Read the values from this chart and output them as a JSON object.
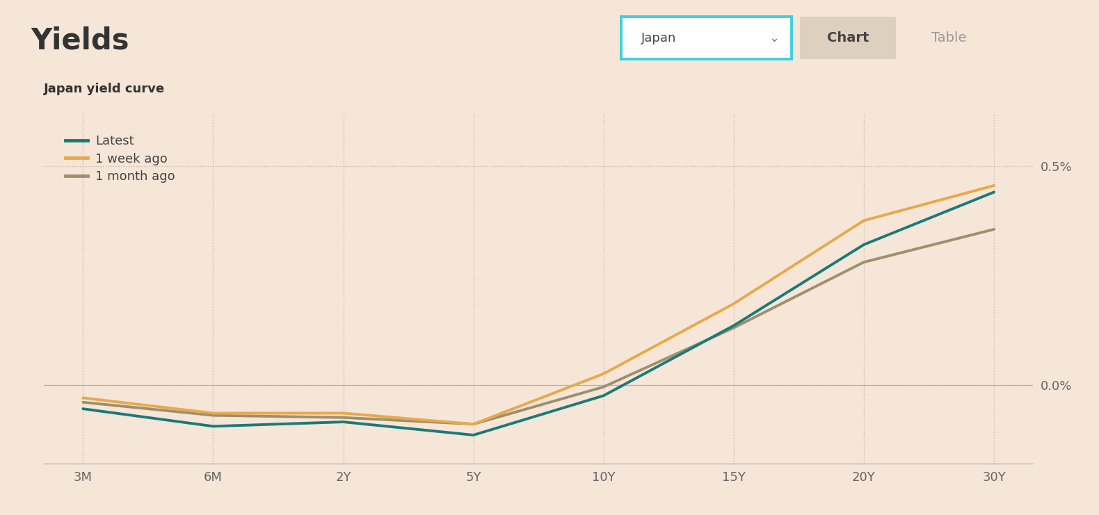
{
  "title": "Yields",
  "subtitle": "Japan yield curve",
  "background_color": "#f5e6d8",
  "plot_bg_color": "#f5e6d8",
  "x_labels": [
    "3M",
    "6M",
    "2Y",
    "5Y",
    "10Y",
    "15Y",
    "20Y",
    "30Y"
  ],
  "x_positions": [
    0,
    1,
    2,
    3,
    4,
    5,
    6,
    7
  ],
  "series": [
    {
      "label": "Latest",
      "color": "#1a7a78",
      "linewidth": 2.8,
      "values": [
        -0.055,
        -0.095,
        -0.085,
        -0.115,
        -0.025,
        0.135,
        0.32,
        0.44
      ]
    },
    {
      "label": "1 week ago",
      "color": "#e8a94a",
      "linewidth": 2.8,
      "values": [
        -0.03,
        -0.065,
        -0.065,
        -0.09,
        0.025,
        0.185,
        0.375,
        0.455
      ]
    },
    {
      "label": "1 month ago",
      "color": "#9e8f6e",
      "linewidth": 2.8,
      "values": [
        -0.04,
        -0.07,
        -0.075,
        -0.09,
        -0.005,
        0.13,
        0.28,
        0.355
      ]
    }
  ],
  "ylim": [
    -0.18,
    0.62
  ],
  "yticks": [
    0.0,
    0.5
  ],
  "ytick_labels": [
    "0.0%",
    "0.5%"
  ],
  "title_fontsize": 30,
  "subtitle_fontsize": 13,
  "legend_fontsize": 13,
  "tick_fontsize": 13,
  "grid_color": "#c8b8a8",
  "grid_linestyle": ":",
  "grid_linewidth": 1.0,
  "dropdown_label": "Japan",
  "dropdown_border_color": "#3ecfe0",
  "tab_chart_label": "Chart",
  "tab_table_label": "Table",
  "tab_active_bg": "#ddd0bf",
  "tab_inactive_color": "#999999",
  "zero_line_color": "#b8a898"
}
